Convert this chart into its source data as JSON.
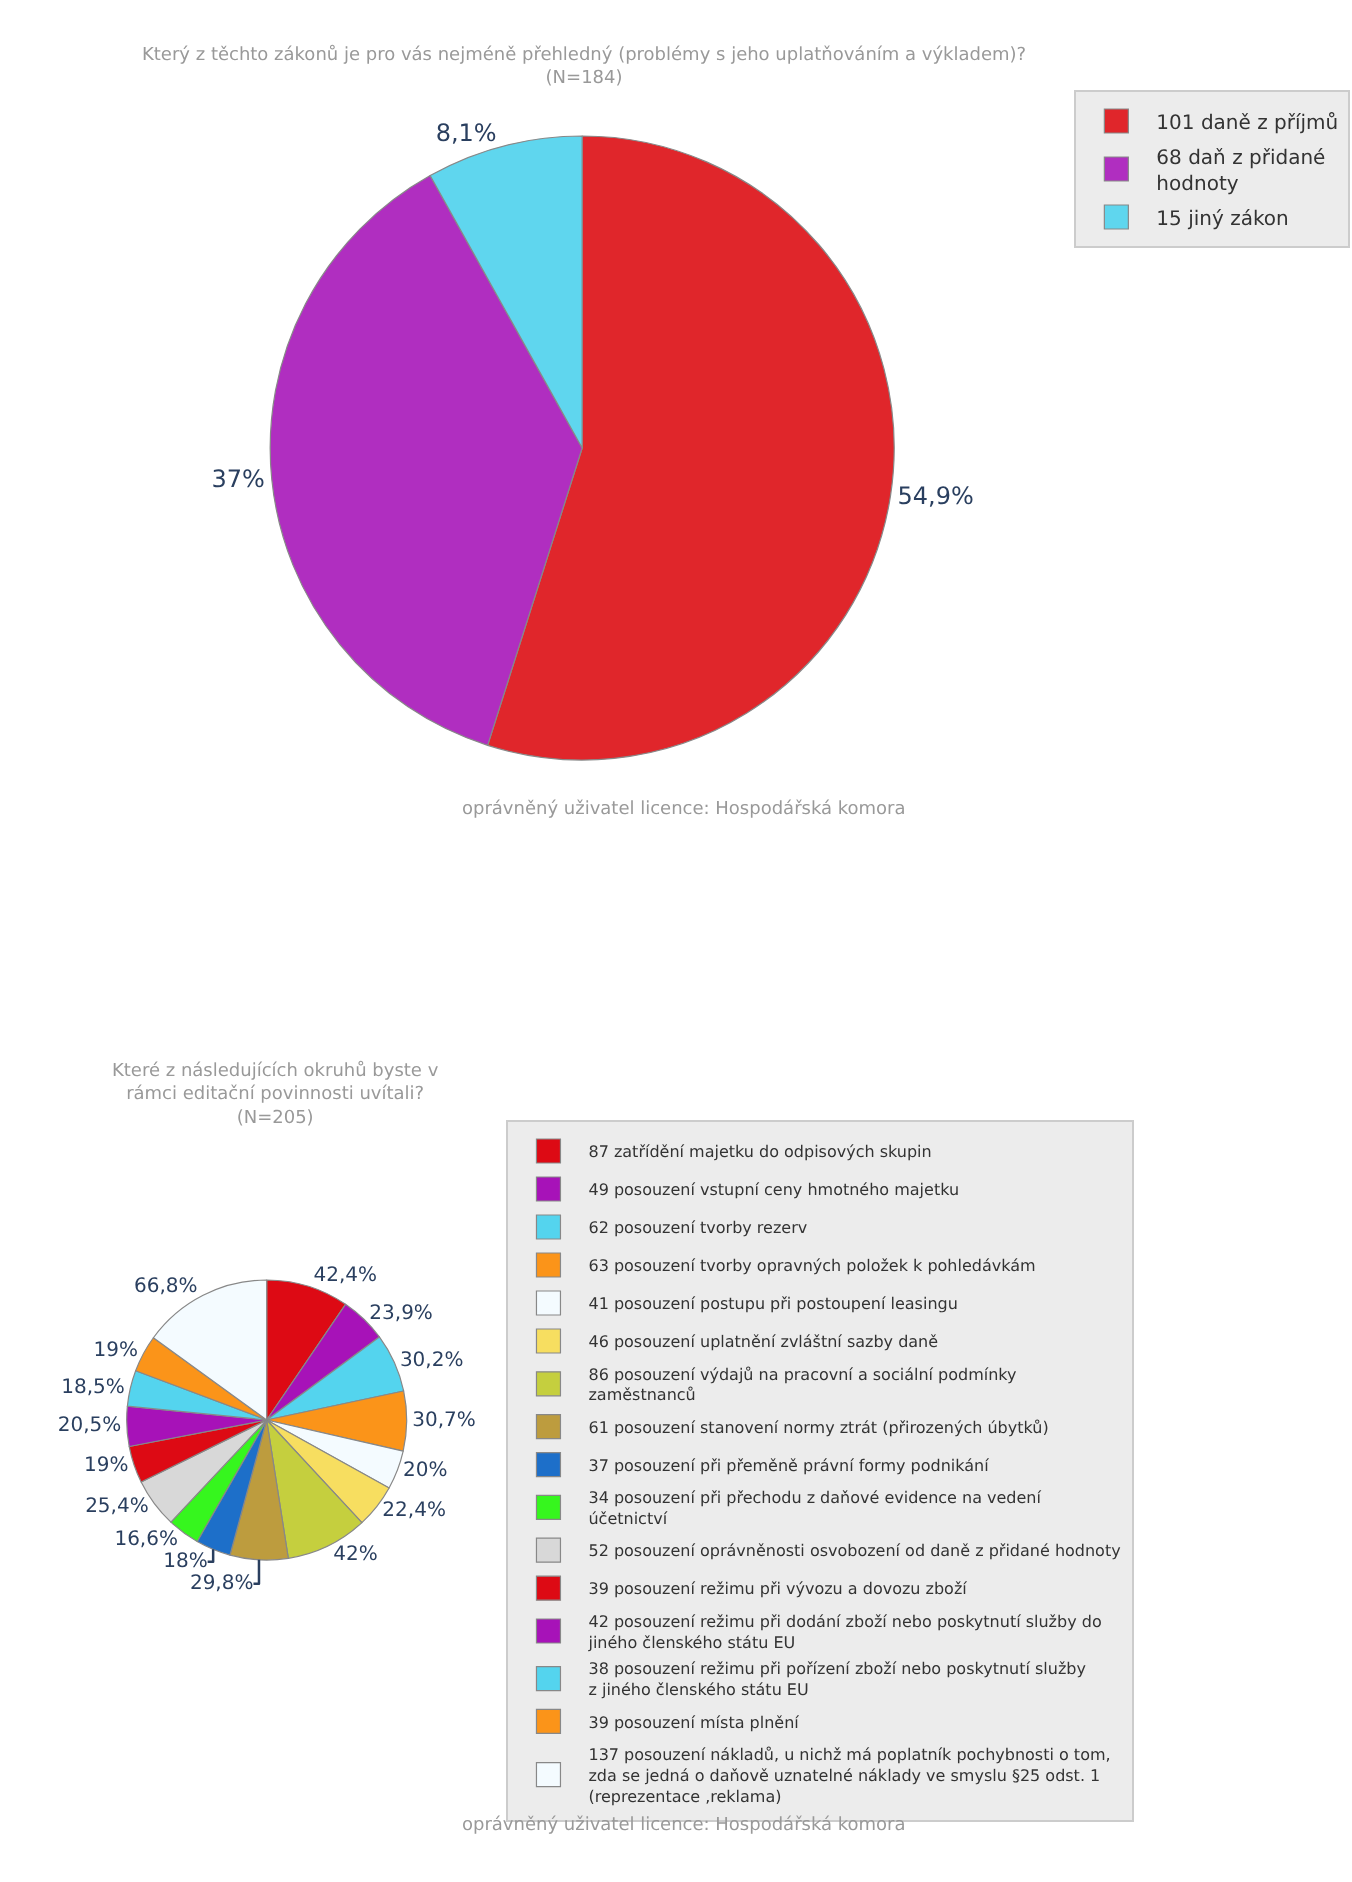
{
  "chart_data": [
    {
      "type": "pie",
      "title": "Který z těchto zákonů je pro vás nejméně přehledný (problémy s jeho uplatňováním a výkladem)?\n(N=184)",
      "categories": [
        "101 daně z příjmů",
        "68 daň z přidané hodnoty",
        "15 jiný zákon"
      ],
      "values": [
        54.9,
        37,
        8.1
      ],
      "value_labels": [
        "54,9%",
        "37%",
        "8,1%"
      ],
      "colors": [
        "#e0262b",
        "#b02ec0",
        "#5fd6ee"
      ],
      "legend": "top right",
      "annotations": [
        "oprávněný uživatel licence: Hospodářská komora"
      ]
    },
    {
      "type": "pie",
      "title": "Které z následujících okruhů byste v\nrámci editační povinnosti uvítali?\n(N=205)",
      "categories": [
        "87 zatřídění majetku do odpisových skupin",
        "49 posouzení vstupní ceny hmotného majetku",
        "62 posouzení tvorby rezerv",
        "63 posouzení tvorby opravných položek k pohledávkám",
        "41 posouzení postupu při postoupení leasingu",
        "46 posouzení uplatnění zvláštní sazby daně",
        "86 posouzení výdajů na pracovní a sociální podmínky zaměstnanců",
        "61 posouzení stanovení normy ztrát (přirozených úbytků)",
        "37 posouzení při přeměně právní formy podnikání",
        "34 posouzení při přechodu z daňové evidence na vedení účetnictví",
        "52 posouzení oprávněnosti osvobození od daně z přidané hodnoty",
        "39 posouzení režimu při vývozu a dovozu zboží",
        "42 posouzení režimu při dodání zboží nebo poskytnutí služby do jiného členského státu EU",
        "38 posouzení režimu při pořízení zboží nebo poskytnutí služby z jiného členského státu EU",
        "39 posouzení místa plnění",
        "137 posouzení nákladů, u nichž má poplatník pochybnosti o tom, zda se jedná o daňově uznatelné náklady ve smyslu §25 odst. 1 (reprezentace ,reklama)"
      ],
      "values": [
        42.4,
        23.9,
        30.2,
        30.7,
        20,
        22.4,
        42,
        29.8,
        18,
        16.6,
        25.4,
        19,
        20.5,
        18.5,
        19,
        66.8
      ],
      "value_labels": [
        "42,4%",
        "23,9%",
        "30,2%",
        "30,7%",
        "20%",
        "22,4%",
        "42%",
        "29,8%",
        "18%",
        "16,6%",
        "25,4%",
        "19%",
        "20,5%",
        "18,5%",
        "19%",
        "66,8%"
      ],
      "colors": [
        "#dd0a14",
        "#a712b8",
        "#54d4ee",
        "#fb9419",
        "#f4fbff",
        "#f7de60",
        "#c5cf3e",
        "#bd9c3e",
        "#1d6fc9",
        "#36f61e",
        "#d8d8d8",
        "#dd0a14",
        "#a712b8",
        "#54d4ee",
        "#fb9419",
        "#f4fbff"
      ],
      "legend": "right",
      "annotations": [
        "oprávněný uživatel licence: Hospodářská komora"
      ]
    }
  ]
}
